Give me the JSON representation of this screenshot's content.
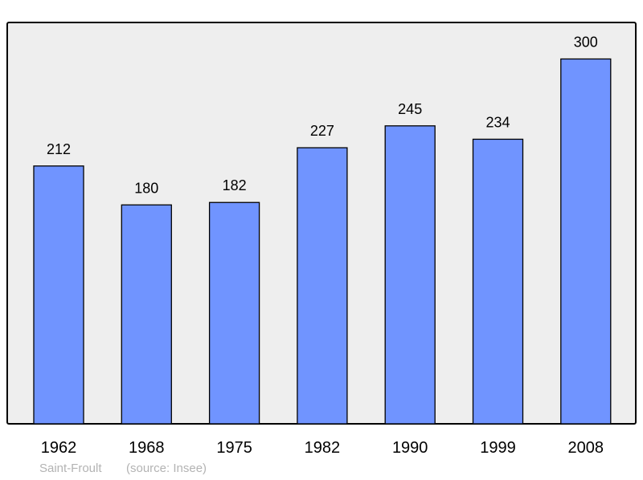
{
  "chart_data": {
    "type": "bar",
    "title": "",
    "xlabel": "",
    "ylabel": "",
    "categories": [
      "1962",
      "1968",
      "1975",
      "1982",
      "1990",
      "1999",
      "2008"
    ],
    "values": [
      212,
      180,
      182,
      227,
      245,
      234,
      300
    ],
    "ylim": [
      0,
      330
    ],
    "grid": false,
    "data_labels": true,
    "colors": {
      "bar": "#7094ff",
      "background": "#eeeeee",
      "frame": "#000000"
    }
  },
  "footer": {
    "place": "Saint-Froult",
    "source": "(source: Insee)"
  }
}
